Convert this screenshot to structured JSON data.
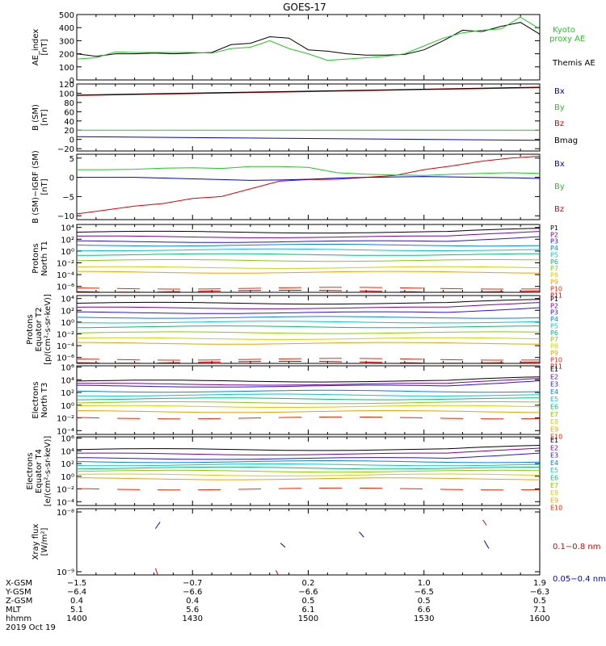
{
  "title": "GOES-17",
  "colors": {
    "black": "#000000",
    "red": "#e00000",
    "green": "#20c820",
    "blue": "#0000dd",
    "p": [
      "#000000",
      "#7a00a0",
      "#2a10ee",
      "#0080ff",
      "#00c8d0",
      "#00c070",
      "#88cc00",
      "#d0d000",
      "#f0a000",
      "#ff2000",
      "#c00000"
    ],
    "e": [
      "#000000",
      "#7a00a0",
      "#2a10ee",
      "#0080ff",
      "#00c8d0",
      "#00c070",
      "#88cc00",
      "#d0d000",
      "#f0a000",
      "#ff2000",
      "#c00000"
    ]
  },
  "chart_data": [
    {
      "type": "line",
      "ylabel": [
        "AE_index",
        "[nT]"
      ],
      "ylim": [
        0,
        500
      ],
      "yticks": [
        "0",
        "100",
        "200",
        "300",
        "400",
        "500"
      ],
      "legend": [
        "Kyoto",
        "proxy AE",
        "Themis AE"
      ],
      "x": [
        1400,
        1405,
        1410,
        1415,
        1420,
        1425,
        1430,
        1435,
        1440,
        1445,
        1450,
        1455,
        1500,
        1505,
        1510,
        1515,
        1520,
        1525,
        1530,
        1535,
        1540,
        1545,
        1550,
        1555,
        1600
      ],
      "series": [
        {
          "name": "Themis AE",
          "color": "black",
          "values": [
            200,
            180,
            200,
            200,
            205,
            200,
            205,
            210,
            270,
            280,
            330,
            320,
            230,
            220,
            200,
            190,
            190,
            195,
            230,
            300,
            380,
            370,
            410,
            440,
            350
          ]
        },
        {
          "name": "Kyoto proxy AE",
          "color": "green",
          "values": [
            160,
            170,
            215,
            210,
            210,
            210,
            210,
            205,
            240,
            250,
            300,
            240,
            200,
            150,
            160,
            170,
            180,
            200,
            260,
            320,
            360,
            380,
            390,
            480,
            390
          ]
        }
      ]
    },
    {
      "type": "line",
      "ylabel": [
        "B (SM)",
        "[nT]"
      ],
      "ylim": [
        -25,
        120
      ],
      "yticks": [
        "−20",
        "0",
        "20",
        "40",
        "60",
        "80",
        "100",
        "120"
      ],
      "legend": [
        "Bx",
        "By",
        "Bz",
        "Bmag"
      ],
      "series": [
        {
          "name": "Bz",
          "color": "red",
          "values": [
            95,
            112
          ]
        },
        {
          "name": "Bmag",
          "color": "black",
          "values": [
            96,
            113
          ]
        },
        {
          "name": "By",
          "color": "green",
          "values": [
            20,
            20
          ]
        },
        {
          "name": "Bx",
          "color": "blue",
          "values": [
            6,
            -2
          ]
        }
      ]
    },
    {
      "type": "line",
      "ylabel": [
        "B (SM)−IGRF (SM)",
        "[nT]"
      ],
      "ylim": [
        -11,
        6
      ],
      "yticks": [
        "−10",
        "−5",
        "0",
        "5"
      ],
      "legend": [
        "Bx",
        "By",
        "Bz"
      ],
      "series": [
        {
          "name": "Bz",
          "color": "red",
          "values": [
            -9.5,
            -8.5,
            -7.5,
            -6.8,
            -5.5,
            -5,
            -3,
            -1,
            -0.6,
            -0.5,
            0,
            0.5,
            2,
            3,
            4.2,
            5,
            5.5
          ]
        },
        {
          "name": "By",
          "color": "green",
          "values": [
            2,
            2,
            2.1,
            2.4,
            2.5,
            2.3,
            2.8,
            2.8,
            2.6,
            1.2,
            0.8,
            0.6,
            0.5,
            0.8,
            1,
            1.2,
            1
          ]
        },
        {
          "name": "Bx",
          "color": "blue",
          "values": [
            0,
            0,
            0,
            -0.2,
            -0.4,
            -0.6,
            -0.8,
            -0.7,
            -0.5,
            -0.2,
            0,
            0.1,
            0.2,
            0.1,
            0,
            -0.1,
            -0.3
          ]
        }
      ]
    },
    {
      "type": "line",
      "ylabel": [
        "Protons",
        "North T1"
      ],
      "yscale": "log",
      "ylim": [
        -7,
        4.5
      ],
      "yticks": [
        "10⁴",
        "10²",
        "10⁰",
        "10⁻²",
        "10⁻⁴",
        "10⁻⁶"
      ],
      "legend": [
        "P1",
        "P2",
        "P3",
        "P4",
        "P5",
        "P6",
        "P7",
        "P8",
        "P9",
        "P10",
        "P11"
      ]
    },
    {
      "type": "line",
      "ylabel": [
        "Protons",
        "Equator T2",
        "[p/(cm²-s-sr-keV)]"
      ],
      "yscale": "log",
      "ylim": [
        -7,
        4.5
      ],
      "yticks": [
        "10⁴",
        "10²",
        "10⁰",
        "10⁻²",
        "10⁻⁴",
        "10⁻⁶"
      ],
      "legend": [
        "P1",
        "P2",
        "P3",
        "P4",
        "P5",
        "P6",
        "P7",
        "P8",
        "P9",
        "P10",
        "P11"
      ]
    },
    {
      "type": "line",
      "ylabel": [
        "Electrons",
        "North T3"
      ],
      "yscale": "log",
      "ylim": [
        -4.6,
        6.2
      ],
      "yticks": [
        "10⁶",
        "10⁴",
        "10²",
        "10⁰",
        "10⁻²",
        "10⁻⁴"
      ],
      "legend": [
        "E1",
        "E2",
        "E3",
        "E4",
        "E5",
        "E6",
        "E7",
        "E8",
        "E9",
        "E10"
      ]
    },
    {
      "type": "line",
      "ylabel": [
        "Electrons",
        "Equator T4",
        "[e/(cm²-s-sr-keV)]"
      ],
      "yscale": "log",
      "ylim": [
        -4.6,
        6.2
      ],
      "yticks": [
        "10⁶",
        "10⁴",
        "10²",
        "10⁰",
        "10⁻²",
        "10⁻⁴"
      ],
      "legend": [
        "E1",
        "E2",
        "E3",
        "E4",
        "E5",
        "E6",
        "E7",
        "E8",
        "E9",
        "E10"
      ]
    },
    {
      "type": "line",
      "ylabel": [
        "Xray flux",
        "[W/m²]"
      ],
      "yscale": "log",
      "ylim": [
        -9,
        -8
      ],
      "yticks": [
        "10⁻⁸",
        "10⁻⁹"
      ],
      "legend": [
        "0.1−0.8 nm",
        "0.05−0.4 nm"
      ]
    }
  ],
  "xaxis": {
    "row_labels": [
      "X-GSM",
      "Y-GSM",
      "Z-GSM",
      "MLT",
      "hhmm"
    ],
    "date": "2019 Oct 19",
    "columns": [
      [
        "−1.5",
        "−6.4",
        "0.4",
        "5.1",
        "1400"
      ],
      [
        "−0.7",
        "−6.6",
        "0.4",
        "5.6",
        "1430"
      ],
      [
        "0.2",
        "−6.6",
        "0.5",
        "6.1",
        "1500"
      ],
      [
        "1.0",
        "−6.5",
        "0.5",
        "6.6",
        "1530"
      ],
      [
        "1.9",
        "−6.3",
        "0.5",
        "7.1",
        "1600"
      ]
    ]
  }
}
